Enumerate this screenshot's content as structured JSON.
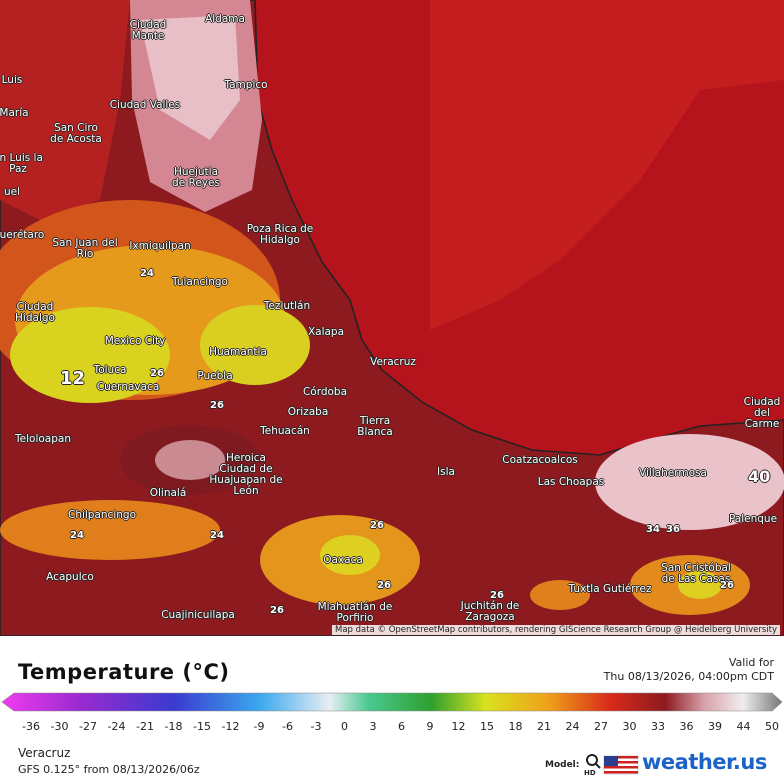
{
  "map": {
    "cities": [
      "Ciudad Mante",
      "Aldama",
      "Tampico",
      "Luis",
      "María",
      "Ciudad Valles",
      "San Ciro de Acosta",
      "an Luis la Paz",
      "Huejutla de Reyes",
      "uel",
      "uerétaro",
      "San Juan del Río",
      "Ixmiquilpan",
      "Poza Rica de Hidalgo",
      "Tulancingo",
      "Teziutlán",
      "Ciudad Hidalgo",
      "Xalapa",
      "Mexico City",
      "Huamantla",
      "Veracruz",
      "Toluca",
      "Puebla",
      "Cuernavaca",
      "Córdoba",
      "Orizaba",
      "Tierra Blanca",
      "Tehuacán",
      "Teloloapan",
      "Heroica Ciudad de Huajuapan de León",
      "Isla",
      "Coatzacoalcos",
      "Las Choapas",
      "Villahermosa",
      "Ciudad del Carme",
      "Olinalá",
      "Chilpancingo",
      "Palenque",
      "Oaxaca",
      "Acapulco",
      "San Cristóbal de Las Casas",
      "Tuxtla Gutiérrez",
      "Miahuatlán de Porfirio",
      "Juchitán de Zaragoza",
      "Cuajinicuilapa"
    ],
    "contour_labels": [
      "12",
      "40",
      "24",
      "24",
      "26",
      "26",
      "26",
      "24",
      "26",
      "26",
      "26",
      "26",
      "34",
      "36"
    ],
    "attribution": "Map data © OpenStreetMap contributors, rendering GIScience Research Group @ Heidelberg University"
  },
  "legend": {
    "title": "Temperature (°C)",
    "valid_label": "Valid for",
    "valid_time": "Thu 08/13/2026, 04:00pm CDT",
    "ticks": [
      "-36",
      "-30",
      "-27",
      "-24",
      "-21",
      "-18",
      "-15",
      "-12",
      "-9",
      "-6",
      "-3",
      "0",
      "3",
      "6",
      "9",
      "12",
      "15",
      "18",
      "21",
      "24",
      "27",
      "30",
      "33",
      "36",
      "39",
      "44",
      "50"
    ]
  },
  "footer": {
    "location": "Veracruz",
    "model_run": "GFS 0.125° from 08/13/2026/06z",
    "model_label": "Model:",
    "hd": "HD",
    "brand": "weather.us"
  }
}
